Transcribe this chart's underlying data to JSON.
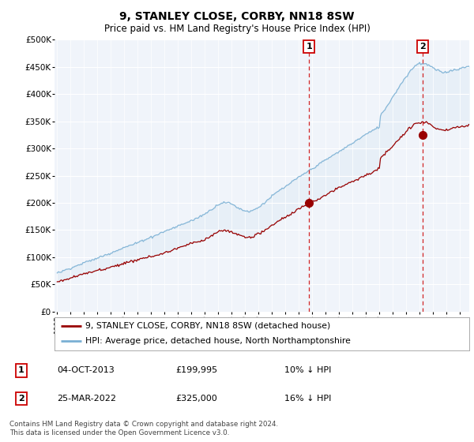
{
  "title": "9, STANLEY CLOSE, CORBY, NN18 8SW",
  "subtitle": "Price paid vs. HM Land Registry's House Price Index (HPI)",
  "ylabel_ticks": [
    "£0",
    "£50K",
    "£100K",
    "£150K",
    "£200K",
    "£250K",
    "£300K",
    "£350K",
    "£400K",
    "£450K",
    "£500K"
  ],
  "ytick_values": [
    0,
    50000,
    100000,
    150000,
    200000,
    250000,
    300000,
    350000,
    400000,
    450000,
    500000
  ],
  "ylim": [
    0,
    500000
  ],
  "hpi_color": "#7ab0d4",
  "hpi_fill_color": "#deeaf4",
  "price_color": "#990000",
  "vline_color": "#cc0000",
  "sale1_year": 2013.77,
  "sale1_price": 199995,
  "sale1_label": "1",
  "sale2_year": 2022.22,
  "sale2_price": 325000,
  "sale2_label": "2",
  "legend_line1": "9, STANLEY CLOSE, CORBY, NN18 8SW (detached house)",
  "legend_line2": "HPI: Average price, detached house, North Northamptonshire",
  "table_row1": [
    "1",
    "04-OCT-2013",
    "£199,995",
    "10% ↓ HPI"
  ],
  "table_row2": [
    "2",
    "25-MAR-2022",
    "£325,000",
    "16% ↓ HPI"
  ],
  "footer": "Contains HM Land Registry data © Crown copyright and database right 2024.\nThis data is licensed under the Open Government Licence v3.0.",
  "background_color": "#ffffff",
  "plot_bg_color": "#f0f4fa"
}
